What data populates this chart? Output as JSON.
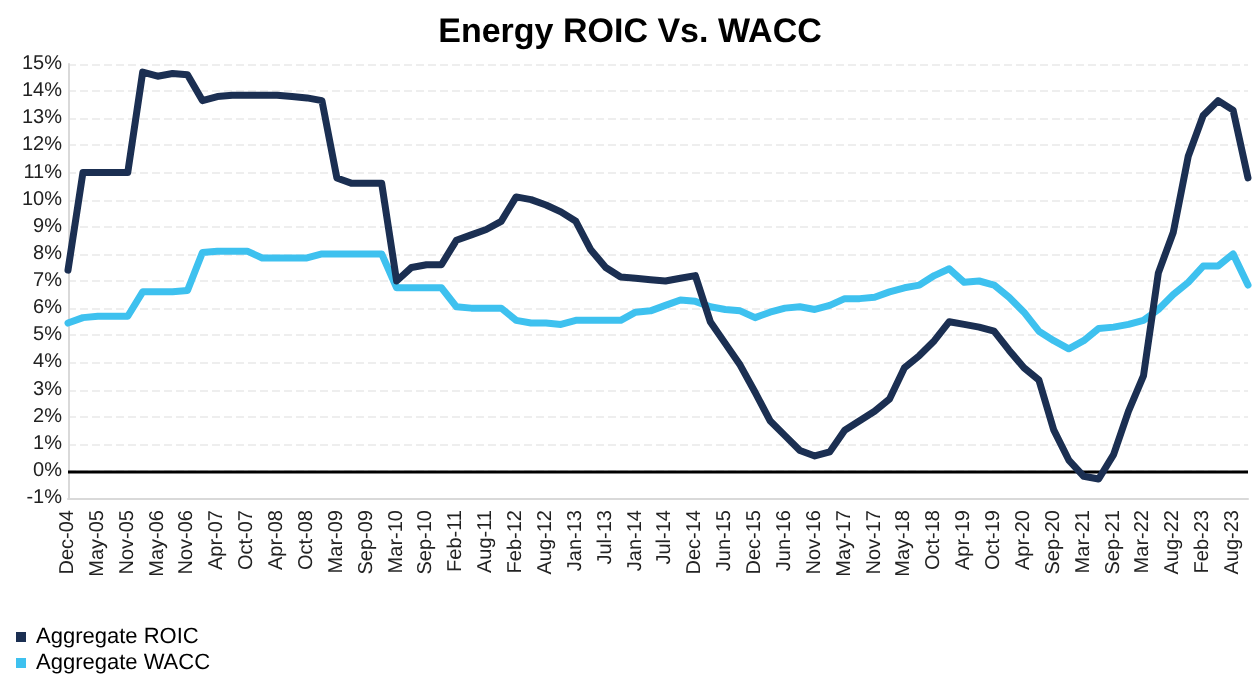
{
  "chart_data": {
    "type": "line",
    "title": "Energy ROIC Vs. WACC",
    "categories": [
      "Dec-04",
      null,
      "May-05",
      null,
      "Nov-05",
      null,
      "May-06",
      null,
      "Nov-06",
      null,
      "Apr-07",
      null,
      "Oct-07",
      null,
      "Apr-08",
      null,
      "Oct-08",
      null,
      "Mar-09",
      null,
      "Sep-09",
      null,
      "Mar-10",
      null,
      "Sep-10",
      null,
      "Feb-11",
      null,
      "Aug-11",
      null,
      "Feb-12",
      null,
      "Aug-12",
      null,
      "Jan-13",
      null,
      "Jul-13",
      null,
      "Jan-14",
      null,
      "Jul-14",
      null,
      "Dec-14",
      null,
      "Jun-15",
      null,
      "Dec-15",
      null,
      "Jun-16",
      null,
      "Nov-16",
      null,
      "May-17",
      null,
      "Nov-17",
      null,
      "May-18",
      null,
      "Oct-18",
      null,
      "Apr-19",
      null,
      "Oct-19",
      null,
      "Apr-20",
      null,
      "Sep-20",
      null,
      "Mar-21",
      null,
      "Sep-21",
      null,
      "Mar-22",
      null,
      "Aug-22",
      null,
      "Feb-23",
      null,
      "Aug-23",
      null
    ],
    "series": [
      {
        "name": "Aggregate ROIC",
        "color": "#1b2f52",
        "values": [
          7.4,
          11.0,
          11.0,
          11.0,
          11.0,
          14.7,
          14.55,
          14.65,
          14.6,
          13.65,
          13.8,
          13.85,
          13.85,
          13.85,
          13.85,
          13.8,
          13.75,
          13.65,
          10.8,
          10.6,
          10.6,
          10.6,
          7.0,
          7.5,
          7.6,
          7.6,
          8.5,
          8.7,
          8.9,
          9.2,
          10.1,
          10.0,
          9.8,
          9.55,
          9.2,
          8.15,
          7.5,
          7.15,
          7.1,
          7.05,
          7.0,
          7.1,
          7.2,
          5.5,
          4.7,
          3.9,
          2.9,
          1.85,
          1.3,
          0.75,
          0.55,
          0.7,
          1.5,
          1.85,
          2.2,
          2.65,
          3.8,
          4.25,
          4.8,
          5.5,
          5.4,
          5.3,
          5.15,
          4.45,
          3.8,
          3.35,
          1.5,
          0.4,
          -0.2,
          -0.3,
          0.6,
          2.2,
          3.5,
          7.3,
          8.8,
          11.6,
          13.1,
          13.65,
          13.3,
          10.8
        ]
      },
      {
        "name": "Aggregate WACC",
        "color": "#3ec1ef",
        "values": [
          5.45,
          5.65,
          5.7,
          5.7,
          5.7,
          6.6,
          6.6,
          6.6,
          6.65,
          8.05,
          8.1,
          8.1,
          8.1,
          7.85,
          7.85,
          7.85,
          7.85,
          8.0,
          8.0,
          8.0,
          8.0,
          8.0,
          6.75,
          6.75,
          6.75,
          6.75,
          6.05,
          6.0,
          6.0,
          6.0,
          5.55,
          5.45,
          5.45,
          5.4,
          5.55,
          5.55,
          5.55,
          5.55,
          5.85,
          5.9,
          6.1,
          6.3,
          6.25,
          6.05,
          5.95,
          5.9,
          5.65,
          5.85,
          6.0,
          6.05,
          5.95,
          6.1,
          6.35,
          6.35,
          6.4,
          6.6,
          6.75,
          6.85,
          7.2,
          7.45,
          6.95,
          7.0,
          6.85,
          6.4,
          5.85,
          5.15,
          4.8,
          4.5,
          4.8,
          5.25,
          5.3,
          5.4,
          5.55,
          5.95,
          6.5,
          6.95,
          7.55,
          7.55,
          8.0,
          6.85
        ]
      }
    ],
    "ylim": [
      -1,
      15
    ],
    "yticks": [
      {
        "value": -1,
        "label": "-1%"
      },
      {
        "value": 0,
        "label": "0%"
      },
      {
        "value": 1,
        "label": "1%"
      },
      {
        "value": 2,
        "label": "2%"
      },
      {
        "value": 3,
        "label": "3%"
      },
      {
        "value": 4,
        "label": "4%"
      },
      {
        "value": 5,
        "label": "5%"
      },
      {
        "value": 6,
        "label": "6%"
      },
      {
        "value": 7,
        "label": "7%"
      },
      {
        "value": 8,
        "label": "8%"
      },
      {
        "value": 9,
        "label": "9%"
      },
      {
        "value": 10,
        "label": "10%"
      },
      {
        "value": 11,
        "label": "11%"
      },
      {
        "value": 12,
        "label": "12%"
      },
      {
        "value": 13,
        "label": "13%"
      },
      {
        "value": 14,
        "label": "14%"
      },
      {
        "value": 15,
        "label": "15%"
      }
    ],
    "ref_lines": [
      {
        "axis": "y",
        "value": 0,
        "color": "#000000"
      }
    ],
    "grid": "y",
    "legend": "bottom left",
    "marker": "none",
    "line_style": "solid"
  }
}
